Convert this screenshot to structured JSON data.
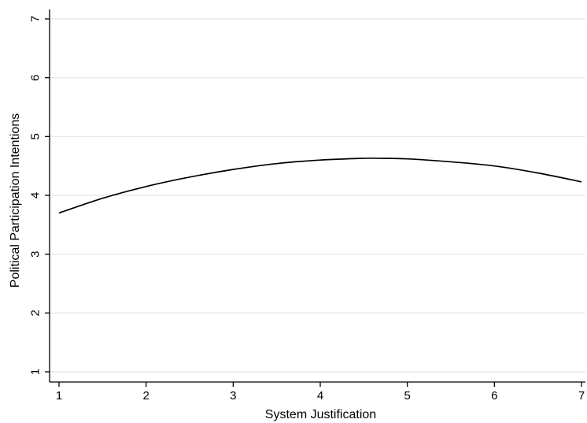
{
  "chart_data": {
    "type": "line",
    "title": "",
    "xlabel": "System Justification",
    "ylabel": "Political Participation Intentions",
    "xlim": [
      1,
      7
    ],
    "ylim": [
      1,
      7
    ],
    "xticks": [
      1,
      2,
      3,
      4,
      5,
      6,
      7
    ],
    "yticks": [
      1,
      2,
      3,
      4,
      5,
      6,
      7
    ],
    "grid": "horizontal",
    "legend": "none",
    "colors": {
      "line": "#000000",
      "grid": "#dce8e8",
      "axis": "#000000",
      "background": "#ffffff"
    },
    "series": [
      {
        "x": [
          1,
          1.5,
          2,
          2.5,
          3,
          3.5,
          4,
          4.5,
          4.65,
          5,
          5.5,
          6,
          6.5,
          7
        ],
        "y": [
          3.7,
          3.95,
          4.15,
          4.31,
          4.44,
          4.54,
          4.6,
          4.63,
          4.63,
          4.62,
          4.57,
          4.5,
          4.38,
          4.23
        ]
      }
    ]
  }
}
